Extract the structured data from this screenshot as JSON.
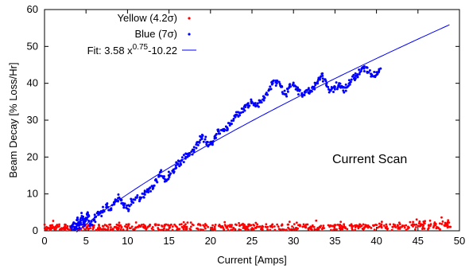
{
  "chart_data": {
    "type": "scatter",
    "xlabel": "Current [Amps]",
    "ylabel": "Beam Decay [% Loss/Hr]",
    "xlim": [
      0,
      50
    ],
    "ylim": [
      0,
      60
    ],
    "xticks": [
      0,
      5,
      10,
      15,
      20,
      25,
      30,
      35,
      40,
      45,
      50
    ],
    "yticks": [
      0,
      10,
      20,
      30,
      40,
      50,
      60
    ],
    "legend_position": "top-left",
    "annotation": "Current Scan",
    "series": [
      {
        "name": "Yellow (4.2σ)",
        "kind": "points",
        "color": "#ff0000",
        "x_range": [
          0,
          49
        ],
        "y_approx": "0 to 3.5, scattered near 1"
      },
      {
        "name": "Blue (7σ)",
        "kind": "points",
        "color": "#0000ff",
        "points": [
          [
            3.2,
            1
          ],
          [
            3.5,
            2
          ],
          [
            3.8,
            0.5
          ],
          [
            4,
            3
          ],
          [
            4.2,
            1.5
          ],
          [
            4.5,
            4
          ],
          [
            4.8,
            2
          ],
          [
            5,
            3.5
          ],
          [
            5.2,
            5
          ],
          [
            5.5,
            2
          ],
          [
            6,
            3
          ],
          [
            6.5,
            4.5
          ],
          [
            7,
            5
          ],
          [
            7.5,
            7
          ],
          [
            8,
            6
          ],
          [
            8.5,
            8
          ],
          [
            9,
            9
          ],
          [
            9.5,
            7
          ],
          [
            10,
            6
          ],
          [
            10.5,
            8
          ],
          [
            11,
            9
          ],
          [
            11.5,
            8.5
          ],
          [
            12,
            10
          ],
          [
            12.5,
            11
          ],
          [
            13,
            12
          ],
          [
            13.5,
            13.5
          ],
          [
            14,
            16
          ],
          [
            14.5,
            14
          ],
          [
            15,
            15
          ],
          [
            15.5,
            16
          ],
          [
            16,
            18
          ],
          [
            16.5,
            19
          ],
          [
            17,
            20
          ],
          [
            17.5,
            21
          ],
          [
            18,
            22
          ],
          [
            18.5,
            24
          ],
          [
            19,
            26
          ],
          [
            19.5,
            24
          ],
          [
            20,
            23.5
          ],
          [
            20.5,
            25
          ],
          [
            21,
            27
          ],
          [
            21.5,
            27.5
          ],
          [
            22,
            28
          ],
          [
            22.5,
            29
          ],
          [
            23,
            31
          ],
          [
            23.5,
            32
          ],
          [
            24,
            33
          ],
          [
            24.5,
            34
          ],
          [
            25,
            35
          ],
          [
            25.5,
            34
          ],
          [
            26,
            35
          ],
          [
            26.5,
            36
          ],
          [
            27,
            38
          ],
          [
            27.5,
            40
          ],
          [
            28,
            40
          ],
          [
            28.5,
            39
          ],
          [
            29,
            37
          ],
          [
            29.5,
            39
          ],
          [
            30,
            40
          ],
          [
            30.5,
            38
          ],
          [
            31,
            37
          ],
          [
            31.5,
            38
          ],
          [
            32,
            38
          ],
          [
            32.5,
            39
          ],
          [
            33,
            41
          ],
          [
            33.5,
            42
          ],
          [
            34,
            40
          ],
          [
            34.5,
            38
          ],
          [
            35,
            39
          ],
          [
            35.5,
            40
          ],
          [
            36,
            38
          ],
          [
            36.5,
            39
          ],
          [
            37,
            41
          ],
          [
            37.5,
            42
          ],
          [
            38,
            43
          ],
          [
            38.5,
            44
          ],
          [
            39,
            43
          ],
          [
            39.5,
            42
          ],
          [
            40,
            43
          ],
          [
            40.5,
            44
          ]
        ]
      },
      {
        "name": "Fit: 3.58 x0.75-10.22",
        "legend_parts": {
          "prefix": "Fit: 3.58 x",
          "superscript": "0.75",
          "suffix": "-10.22"
        },
        "kind": "line",
        "color": "#0000ff",
        "formula": {
          "a": 3.58,
          "p": 0.75,
          "c": -10.22
        },
        "x_range": [
          3.86,
          48.8
        ]
      }
    ]
  }
}
